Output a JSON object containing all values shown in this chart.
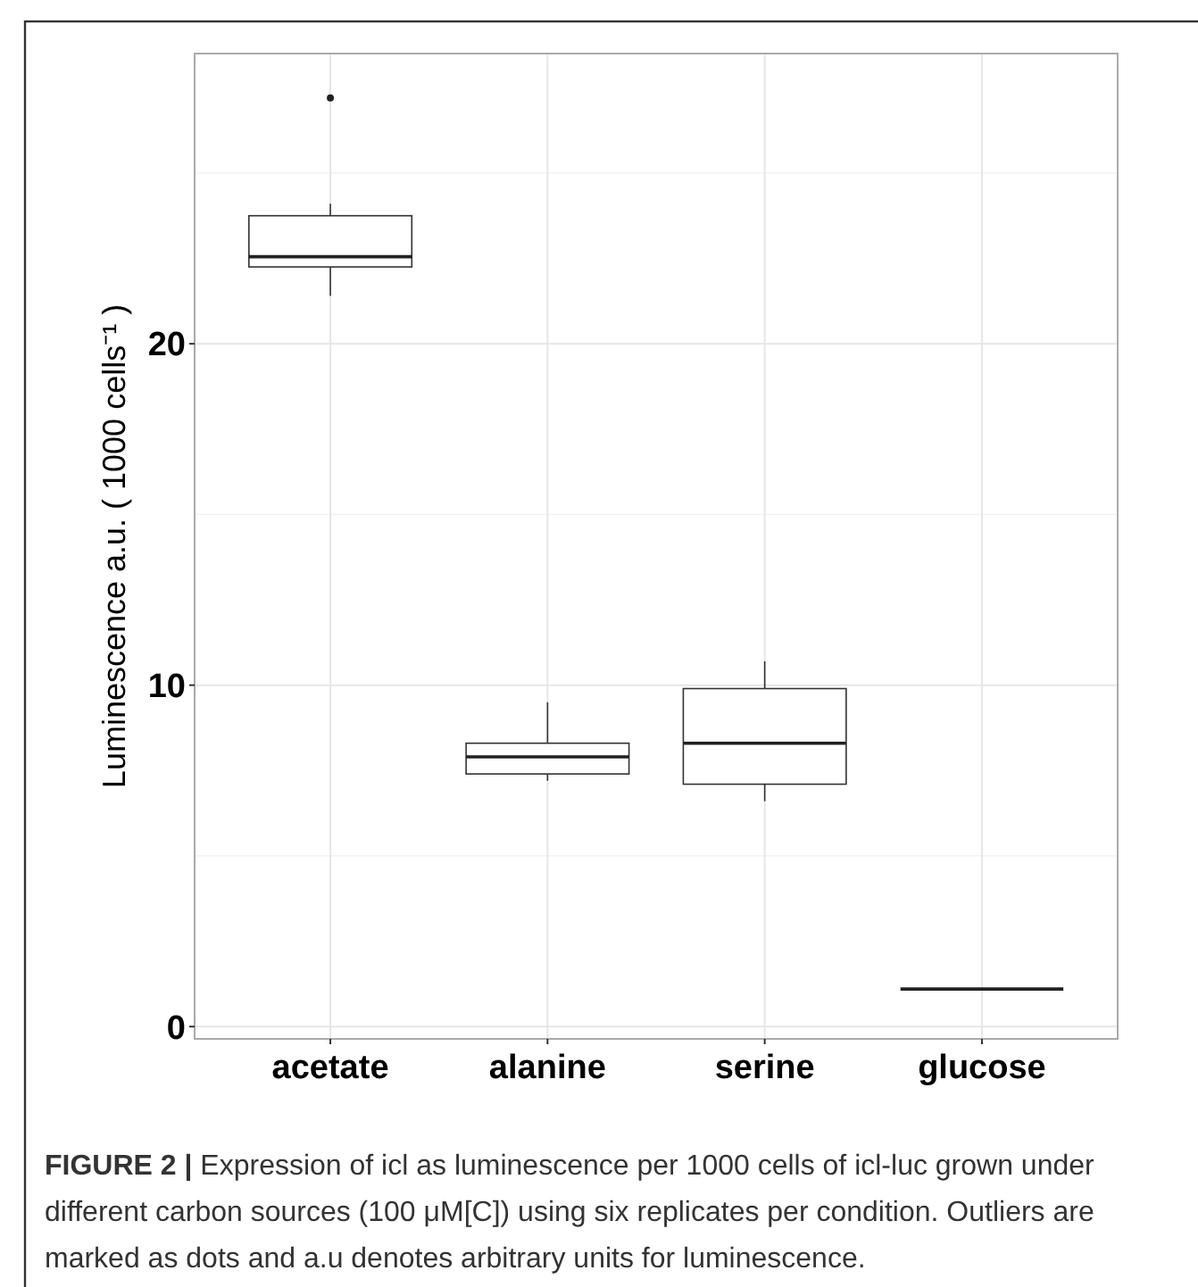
{
  "chart_data": {
    "type": "box",
    "ylabel": "Luminescence a.u. ( 1000 cells⁻¹ )",
    "categories": [
      "acetate",
      "alanine",
      "serine",
      "glucose"
    ],
    "boxes": [
      {
        "low": 21.4,
        "q1": 22.25,
        "median": 22.55,
        "q3": 23.75,
        "high": 24.1,
        "outliers": [
          27.2
        ]
      },
      {
        "low": 7.2,
        "q1": 7.4,
        "median": 7.9,
        "q3": 8.3,
        "high": 9.5
      },
      {
        "low": 6.6,
        "q1": 7.1,
        "median": 8.3,
        "q3": 9.9,
        "high": 10.7
      },
      {
        "low": 1.1,
        "q1": 1.1,
        "median": 1.1,
        "q3": 1.1,
        "high": 1.1
      }
    ],
    "ylim": [
      -0.36,
      28.5
    ],
    "yticks": [
      0,
      {
        "value": 5,
        "label": null
      },
      10,
      {
        "value": 15,
        "label": null
      },
      20,
      {
        "value": 25,
        "label": null
      }
    ],
    "grid": true,
    "annotations": [
      "FIGURE 2 | Expression of icl as luminescence per 1000 cells of icl-luc grown under different carbon sources (100 μM[C]) using six replicates per condition. Outliers are marked as dots and a.u denotes arbitrary units for luminescence."
    ]
  }
}
